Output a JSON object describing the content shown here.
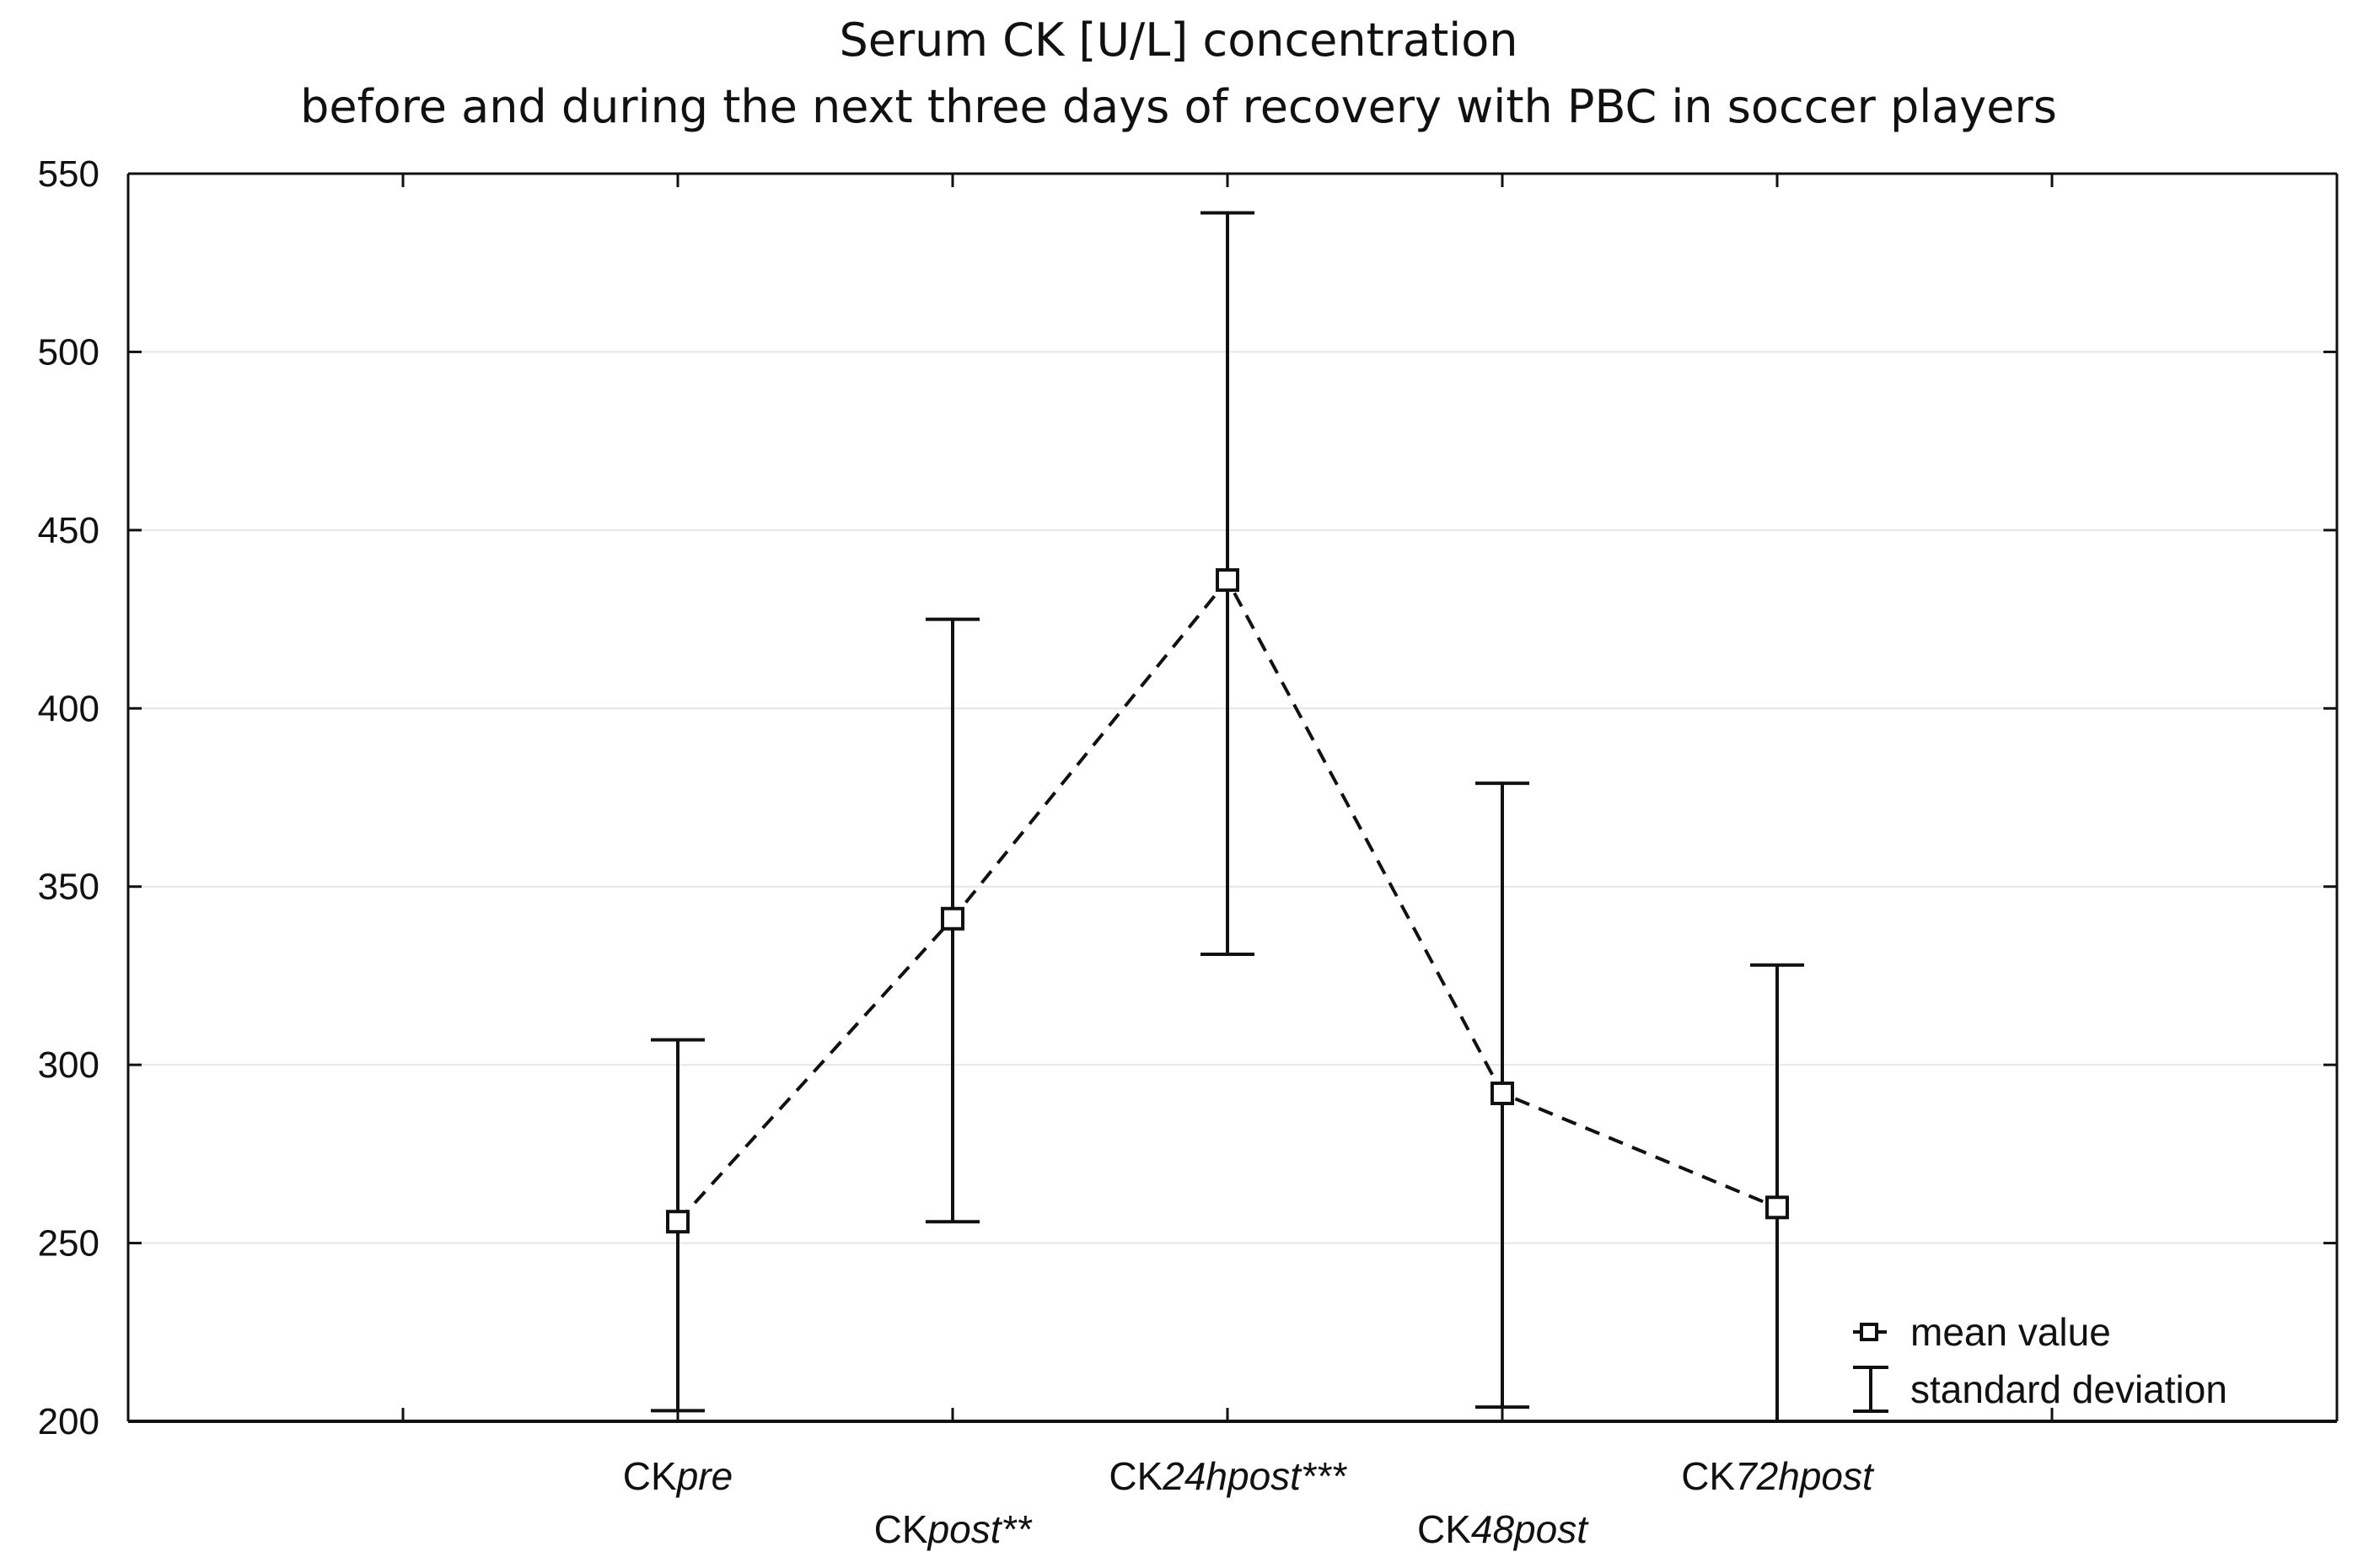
{
  "chart_data": {
    "type": "line",
    "title": "Serum CK [U/L]  concentration",
    "subtitle": "before and during the next three days of recovery with PBC in soccer players",
    "xlabel": "",
    "ylabel": "",
    "ylim": [
      200,
      550
    ],
    "y_ticks": [
      "550",
      "500",
      "450",
      "400",
      "350",
      "300",
      "250",
      "200"
    ],
    "grid": true,
    "categories": [
      {
        "prefix": "CK",
        "suffix": "pre"
      },
      {
        "prefix": "CK",
        "suffix": "post**"
      },
      {
        "prefix": "CK",
        "suffix": "24hpost***"
      },
      {
        "prefix": "CK",
        "suffix": "48post"
      },
      {
        "prefix": "CK",
        "suffix": "72hpost"
      }
    ],
    "series": [
      {
        "name": "mean value",
        "values": [
          256,
          341,
          436,
          292,
          260
        ],
        "sd_lower": [
          203,
          256,
          331,
          204,
          200
        ],
        "sd_upper": [
          307,
          425,
          539,
          379,
          328
        ]
      }
    ],
    "legend": {
      "placement": "bottom-right",
      "mean_label": "mean value",
      "sd_label": "standard deviation"
    }
  }
}
